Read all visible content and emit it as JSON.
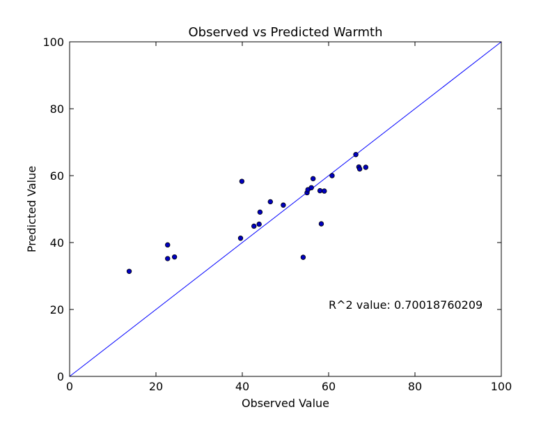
{
  "chart_data": {
    "type": "scatter",
    "title": "Observed vs Predicted Warmth",
    "xlabel": "Observed Value",
    "ylabel": "Predicted Value",
    "xlim": [
      0,
      100
    ],
    "ylim": [
      0,
      100
    ],
    "xticks": [
      0,
      20,
      40,
      60,
      80,
      100
    ],
    "yticks": [
      0,
      20,
      40,
      60,
      80,
      100
    ],
    "grid": false,
    "annotation": "R^2 value: 0.70018760209",
    "reference_line": {
      "x": [
        0,
        100
      ],
      "y": [
        0,
        100
      ],
      "color": "#0000ff"
    },
    "point_color": "#0000bf",
    "points": [
      {
        "x": 13.8,
        "y": 31.4
      },
      {
        "x": 22.7,
        "y": 39.3
      },
      {
        "x": 22.7,
        "y": 35.2
      },
      {
        "x": 24.3,
        "y": 35.7
      },
      {
        "x": 39.6,
        "y": 41.3
      },
      {
        "x": 39.9,
        "y": 58.3
      },
      {
        "x": 42.7,
        "y": 44.9
      },
      {
        "x": 43.9,
        "y": 45.5
      },
      {
        "x": 44.1,
        "y": 49.1
      },
      {
        "x": 46.5,
        "y": 52.2
      },
      {
        "x": 49.5,
        "y": 51.2
      },
      {
        "x": 54.1,
        "y": 35.6
      },
      {
        "x": 55.0,
        "y": 54.9
      },
      {
        "x": 55.2,
        "y": 55.8
      },
      {
        "x": 56.0,
        "y": 56.4
      },
      {
        "x": 56.4,
        "y": 59.1
      },
      {
        "x": 58.0,
        "y": 55.5
      },
      {
        "x": 58.3,
        "y": 45.6
      },
      {
        "x": 59.0,
        "y": 55.4
      },
      {
        "x": 60.8,
        "y": 60.0
      },
      {
        "x": 66.3,
        "y": 66.3
      },
      {
        "x": 67.0,
        "y": 62.6
      },
      {
        "x": 67.2,
        "y": 62.0
      },
      {
        "x": 68.6,
        "y": 62.5
      }
    ]
  }
}
